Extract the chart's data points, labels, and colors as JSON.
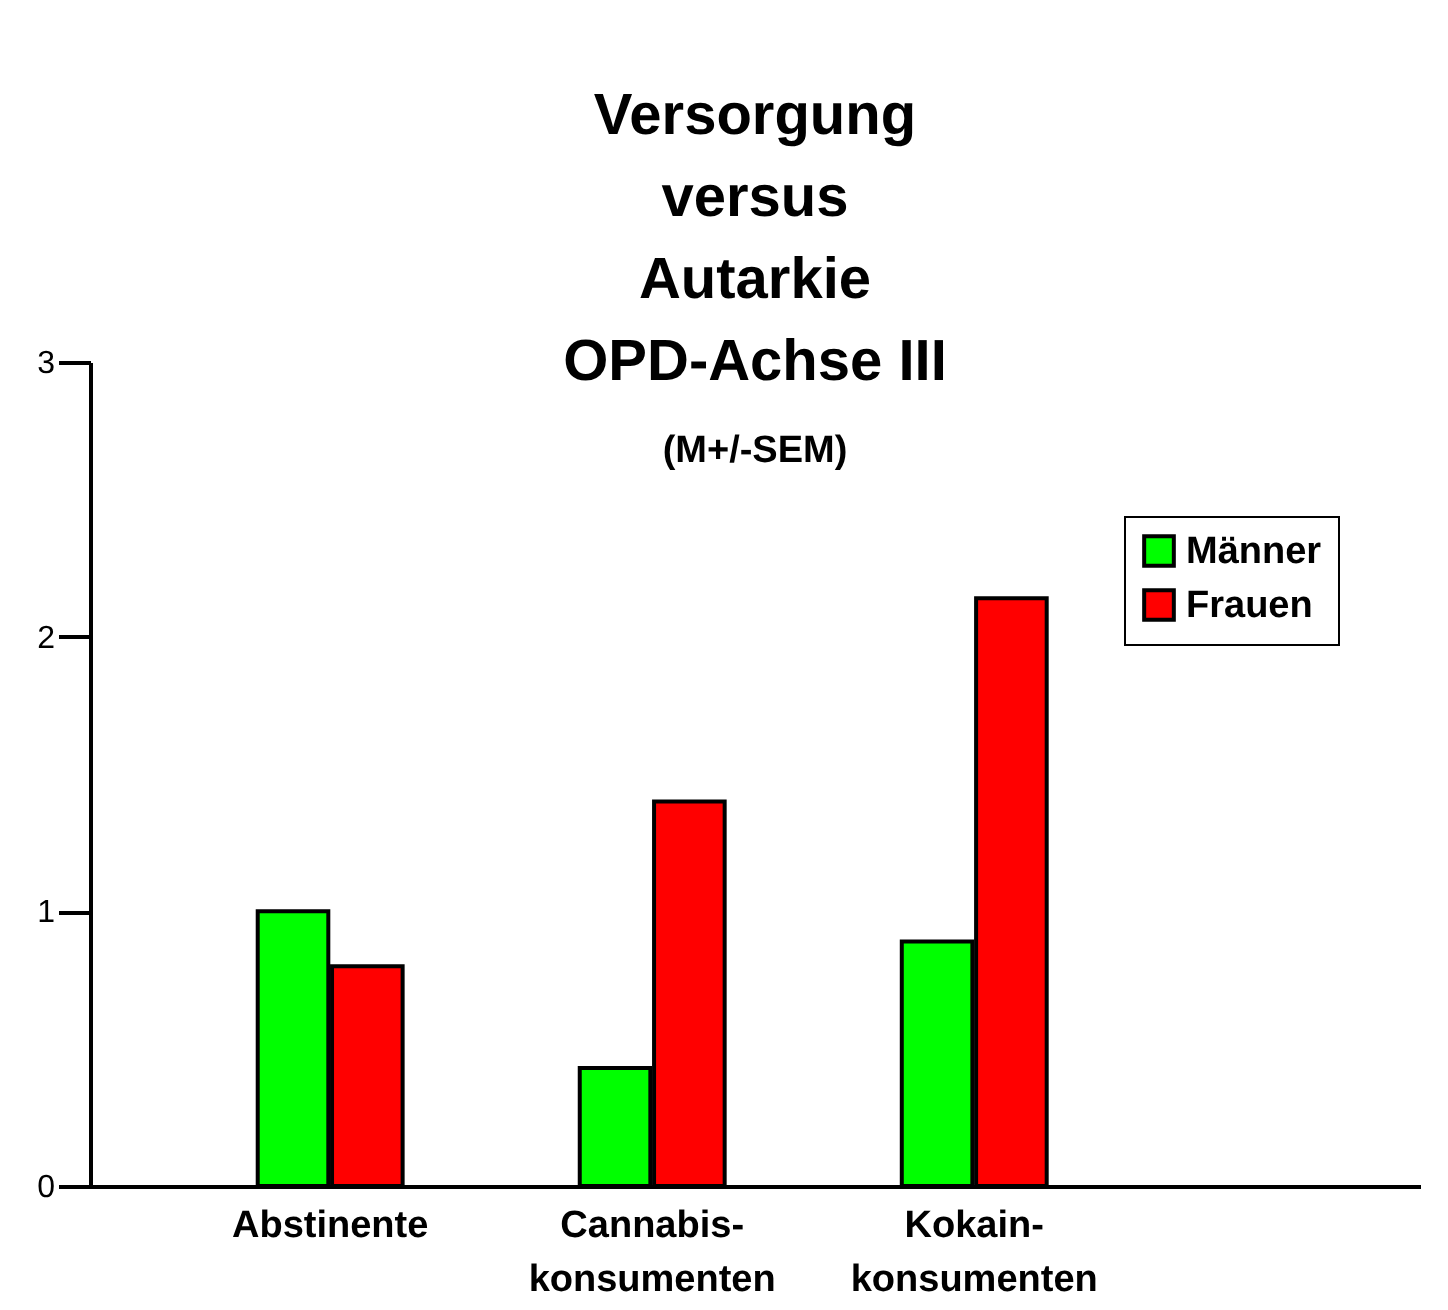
{
  "chart_data": {
    "type": "bar",
    "title": "Versorgung versus Autarkie OPD-Achse III",
    "subtitle": "(M+/-SEM)",
    "categories": [
      "Abstinente",
      "Cannabis-konsumenten",
      "Kokain-konsumenten"
    ],
    "series": [
      {
        "name": "Männer",
        "color": "#00ff00",
        "values": [
          1.0,
          0.43,
          0.89
        ]
      },
      {
        "name": "Frauen",
        "color": "#ff0000",
        "values": [
          0.8,
          1.4,
          2.14
        ]
      }
    ],
    "ylim": [
      0,
      3
    ],
    "yticks": [
      0,
      1,
      2,
      3
    ],
    "grid": false,
    "legend": "top right"
  }
}
